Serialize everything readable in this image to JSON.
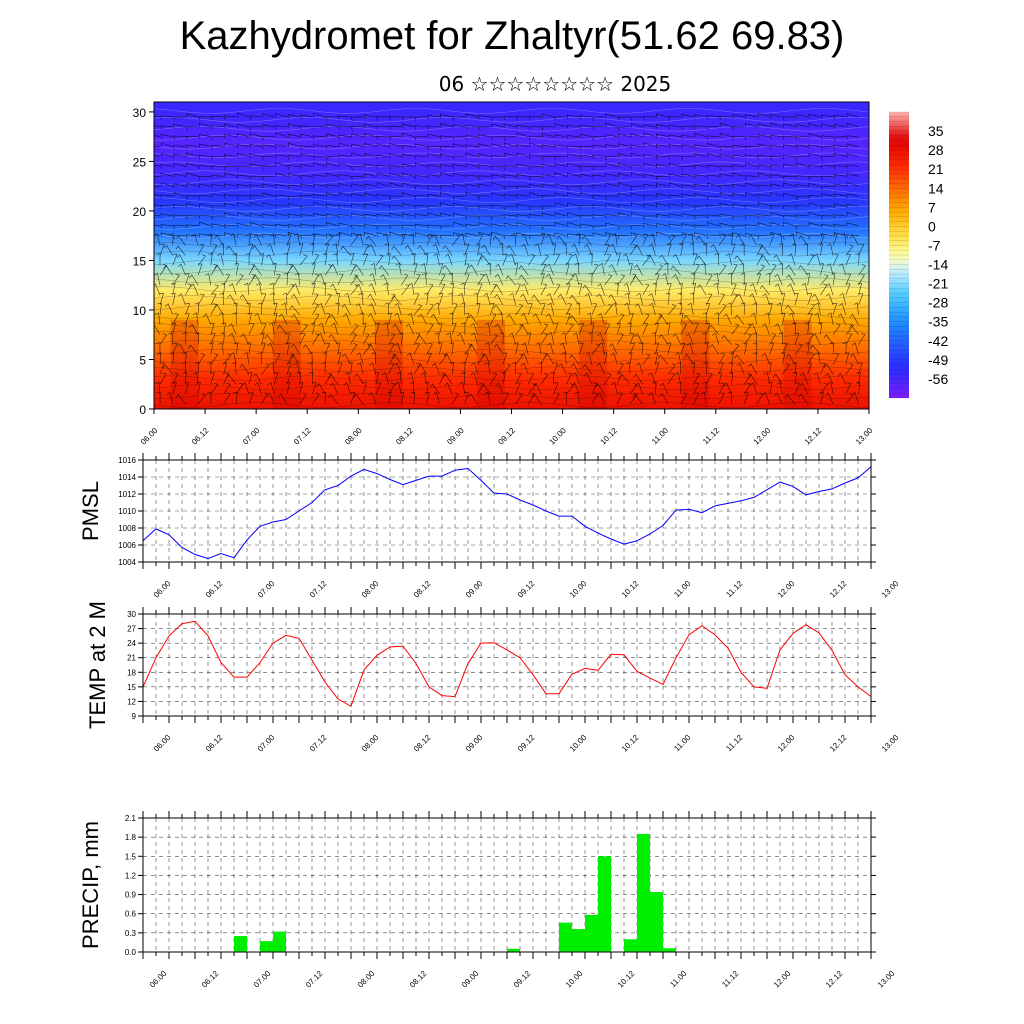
{
  "title": "Kazhydromet for Zhaltyr(51.62 69.83)",
  "subtitle": "06 ☆☆☆☆☆☆☆☆ 2025",
  "time_labels": [
    "06.00",
    "06.12",
    "07.00",
    "07.12",
    "08.00",
    "08.12",
    "09.00",
    "09.12",
    "10.00",
    "10.12",
    "11.00",
    "11.12",
    "12.00",
    "12.12",
    "13.00"
  ],
  "chart_data": [
    {
      "type": "heatmap",
      "name": "cross-section",
      "x": [
        "06.00",
        "06.12",
        "07.00",
        "07.12",
        "08.00",
        "08.12",
        "09.00",
        "09.12",
        "10.00",
        "10.12",
        "11.00",
        "11.12",
        "12.00",
        "12.12",
        "13.00"
      ],
      "y_ticks": [
        "0",
        "5",
        "10",
        "15",
        "20",
        "25",
        "30"
      ],
      "ylim": [
        0,
        31
      ],
      "levels": [
        0,
        3,
        6,
        9,
        12,
        15,
        18,
        21,
        24,
        27,
        30
      ],
      "profile": [
        28,
        22,
        14,
        6,
        -6,
        -22,
        -40,
        -50,
        -56,
        -58,
        -54
      ],
      "colorbar": {
        "labels": [
          "35",
          "28",
          "21",
          "14",
          "7",
          "0",
          "-7",
          "-14",
          "-21",
          "-28",
          "-35",
          "-42",
          "-49",
          "-56"
        ],
        "range": [
          -63,
          42
        ],
        "colors": [
          "#7a1fff",
          "#2a2aff",
          "#1f8fff",
          "#4ecbff",
          "#cfefff",
          "#ffffb0",
          "#ffe24a",
          "#ffa800",
          "#ff6a00",
          "#ff2a00",
          "#e00000",
          "#ffb0b0"
        ]
      },
      "wind_barbs": true
    },
    {
      "type": "line",
      "name": "PMSL",
      "ylabel": "PMSL",
      "y_ticks": [
        "1004",
        "1006",
        "1008",
        "1010",
        "1012",
        "1014",
        "1016"
      ],
      "ylim": [
        1004,
        1016
      ],
      "color": "#0000ff",
      "x_index": [
        0.0,
        0.25,
        0.5,
        0.75,
        1.0,
        1.25,
        1.5,
        1.75,
        2.0,
        2.25,
        2.5,
        2.75,
        3.0,
        3.25,
        3.5,
        3.75,
        4.0,
        4.25,
        4.5,
        4.75,
        5.0,
        5.25,
        5.5,
        5.75,
        6.0,
        6.25,
        6.5,
        6.75,
        7.0,
        7.25,
        7.5,
        7.75,
        8.0,
        8.25,
        8.5,
        8.75,
        9.0,
        9.25,
        9.5,
        9.75,
        10.0,
        10.25,
        10.5,
        10.75,
        11.0,
        11.25,
        11.5,
        11.75,
        12.0,
        12.25,
        12.5,
        12.75,
        13.0,
        13.25,
        13.5,
        13.75,
        14.0
      ],
      "values": [
        1006.5,
        1007.9,
        1007.2,
        1005.7,
        1004.9,
        1004.4,
        1005.0,
        1004.5,
        1006.6,
        1008.2,
        1008.7,
        1009.0,
        1010.0,
        1011.0,
        1012.5,
        1013.0,
        1014.1,
        1014.9,
        1014.4,
        1013.7,
        1013.1,
        1013.6,
        1014.1,
        1014.1,
        1014.8,
        1015.0,
        1013.6,
        1012.1,
        1012.0,
        1011.3,
        1010.7,
        1010.0,
        1009.4,
        1009.4,
        1008.2,
        1007.4,
        1006.7,
        1006.1,
        1006.5,
        1007.3,
        1008.3,
        1010.1,
        1010.2,
        1009.8,
        1010.6,
        1010.9,
        1011.2,
        1011.6,
        1012.5,
        1013.4,
        1012.9,
        1011.9,
        1012.3,
        1012.6,
        1013.3,
        1013.9,
        1015.2
      ]
    },
    {
      "type": "line",
      "name": "TEMP at 2 M",
      "ylabel": "TEMP at 2 M",
      "y_ticks": [
        "9",
        "12",
        "15",
        "18",
        "21",
        "24",
        "27",
        "30"
      ],
      "ylim": [
        9,
        30
      ],
      "color": "#ff0000",
      "x_index": [
        0.0,
        0.25,
        0.5,
        0.75,
        1.0,
        1.25,
        1.5,
        1.75,
        2.0,
        2.25,
        2.5,
        2.75,
        3.0,
        3.25,
        3.5,
        3.75,
        4.0,
        4.25,
        4.5,
        4.75,
        5.0,
        5.25,
        5.5,
        5.75,
        6.0,
        6.25,
        6.5,
        6.75,
        7.0,
        7.25,
        7.5,
        7.75,
        8.0,
        8.25,
        8.5,
        8.75,
        9.0,
        9.25,
        9.5,
        9.75,
        10.0,
        10.25,
        10.5,
        10.75,
        11.0,
        11.25,
        11.5,
        11.75,
        12.0,
        12.25,
        12.5,
        12.75,
        13.0,
        13.25,
        13.5,
        13.75,
        14.0
      ],
      "values": [
        15.0,
        21.0,
        25.5,
        28.0,
        28.5,
        25.5,
        20.0,
        17.0,
        17.0,
        20.0,
        24.0,
        25.6,
        25.0,
        20.5,
        16.0,
        12.5,
        11.0,
        18.5,
        21.5,
        23.2,
        23.4,
        19.8,
        15.0,
        13.2,
        13.0,
        19.8,
        24.0,
        24.1,
        22.6,
        21.0,
        17.5,
        13.6,
        13.6,
        17.6,
        18.8,
        18.4,
        21.7,
        21.6,
        18.2,
        16.8,
        15.5,
        21.0,
        25.7,
        27.6,
        25.7,
        23.0,
        18.0,
        15.0,
        14.7,
        22.6,
        26.0,
        27.8,
        26.1,
        22.5,
        17.5,
        15.0,
        13.0
      ]
    },
    {
      "type": "bar",
      "name": "PRECIP, mm",
      "ylabel": "PRECIP, mm",
      "y_ticks": [
        "0.0",
        "0.3",
        "0.6",
        "0.9",
        "1.2",
        "1.5",
        "1.8",
        "2.1"
      ],
      "ylim": [
        0,
        2.1
      ],
      "color": "#00ee00",
      "bar_index": [
        0.0,
        0.25,
        0.5,
        0.75,
        1.0,
        1.25,
        1.5,
        1.75,
        2.0,
        2.25,
        2.5,
        2.75,
        3.0,
        3.25,
        3.5,
        3.75,
        4.0,
        4.25,
        4.5,
        4.75,
        5.0,
        5.25,
        5.5,
        5.75,
        6.0,
        6.25,
        6.5,
        6.75,
        7.0,
        7.25,
        7.5,
        7.75,
        8.0,
        8.25,
        8.5,
        8.75,
        9.0,
        9.25,
        9.5,
        9.75,
        10.0,
        10.25,
        10.5,
        10.75,
        11.0,
        11.25,
        11.5,
        11.75,
        12.0,
        12.25,
        12.5,
        12.75,
        13.0,
        13.25,
        13.5,
        13.75
      ],
      "values": [
        0,
        0,
        0,
        0,
        0,
        0,
        0,
        0.25,
        0,
        0.17,
        0.32,
        0,
        0,
        0,
        0,
        0,
        0,
        0,
        0,
        0,
        0,
        0,
        0,
        0,
        0,
        0,
        0,
        0,
        0.05,
        0,
        0,
        0,
        0.46,
        0.36,
        0.58,
        1.5,
        0,
        0.2,
        1.85,
        0.94,
        0.06,
        0,
        0,
        0,
        0,
        0,
        0,
        0,
        0,
        0,
        0,
        0,
        0,
        0,
        0,
        0
      ]
    }
  ]
}
